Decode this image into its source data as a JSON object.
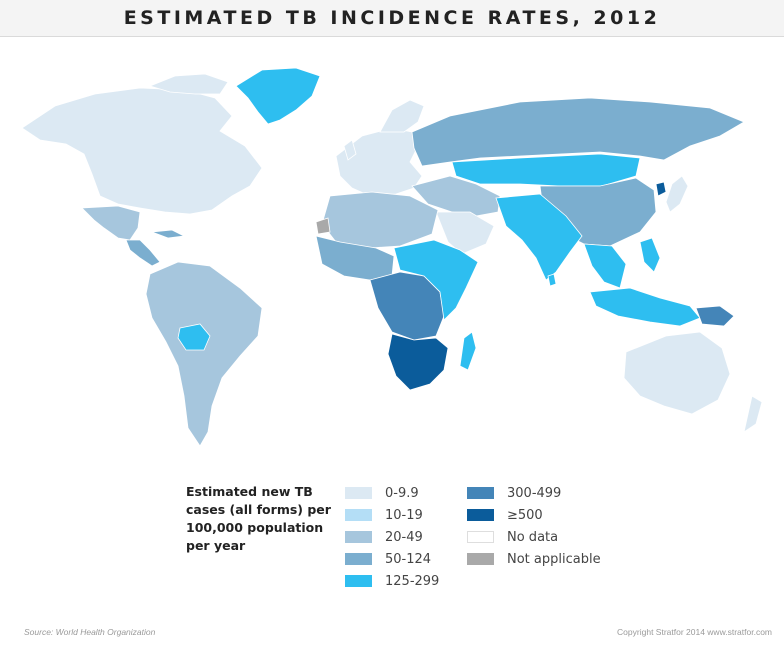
{
  "title": "ESTIMATED TB INCIDENCE RATES, 2012",
  "legend": {
    "heading": "Estimated new TB cases (all forms) per 100,000 population per year",
    "items": [
      {
        "label": "0-9.9",
        "color": "#dce9f3"
      },
      {
        "label": "10-19",
        "color": "#b4def6"
      },
      {
        "label": "20-49",
        "color": "#a6c6dd"
      },
      {
        "label": "50-124",
        "color": "#7baecf"
      },
      {
        "label": "125-299",
        "color": "#2ebef0"
      },
      {
        "label": "300-499",
        "color": "#4485b8"
      },
      {
        "label": "≥500",
        "color": "#0b5c9b"
      },
      {
        "label": "No data",
        "color": "#ffffff"
      },
      {
        "label": "Not applicable",
        "color": "#a9a9a9"
      }
    ]
  },
  "regions": [
    {
      "name": "Greenland",
      "category": "125-299"
    },
    {
      "name": "North America",
      "category": "0-9.9"
    },
    {
      "name": "Mexico",
      "category": "20-49"
    },
    {
      "name": "Central America",
      "category": "50-124"
    },
    {
      "name": "South America",
      "category": "20-49"
    },
    {
      "name": "Bolivia",
      "category": "125-299"
    },
    {
      "name": "Europe",
      "category": "0-9.9"
    },
    {
      "name": "Russia",
      "category": "50-124"
    },
    {
      "name": "Mongolia and Kazakhstan",
      "category": "125-299"
    },
    {
      "name": "China",
      "category": "50-124"
    },
    {
      "name": "India",
      "category": "125-299"
    },
    {
      "name": "Arabian Peninsula",
      "category": "0-9.9"
    },
    {
      "name": "North Africa",
      "category": "20-49"
    },
    {
      "name": "West Africa",
      "category": "50-124"
    },
    {
      "name": "Central Africa",
      "category": "300-499"
    },
    {
      "name": "East Africa",
      "category": "125-299"
    },
    {
      "name": "Southern Africa",
      "category": "≥500"
    },
    {
      "name": "Madagascar",
      "category": "125-299"
    },
    {
      "name": "Southeast Asia",
      "category": "125-299"
    },
    {
      "name": "Papua New Guinea",
      "category": "300-499"
    },
    {
      "name": "North Korea",
      "category": "≥500"
    },
    {
      "name": "Australia",
      "category": "0-9.9"
    },
    {
      "name": "Western Sahara",
      "category": "Not applicable"
    }
  ],
  "footer": {
    "source": "Source: World Health Organization",
    "copyright": "Copyright Stratfor 2014   www.stratfor.com"
  }
}
